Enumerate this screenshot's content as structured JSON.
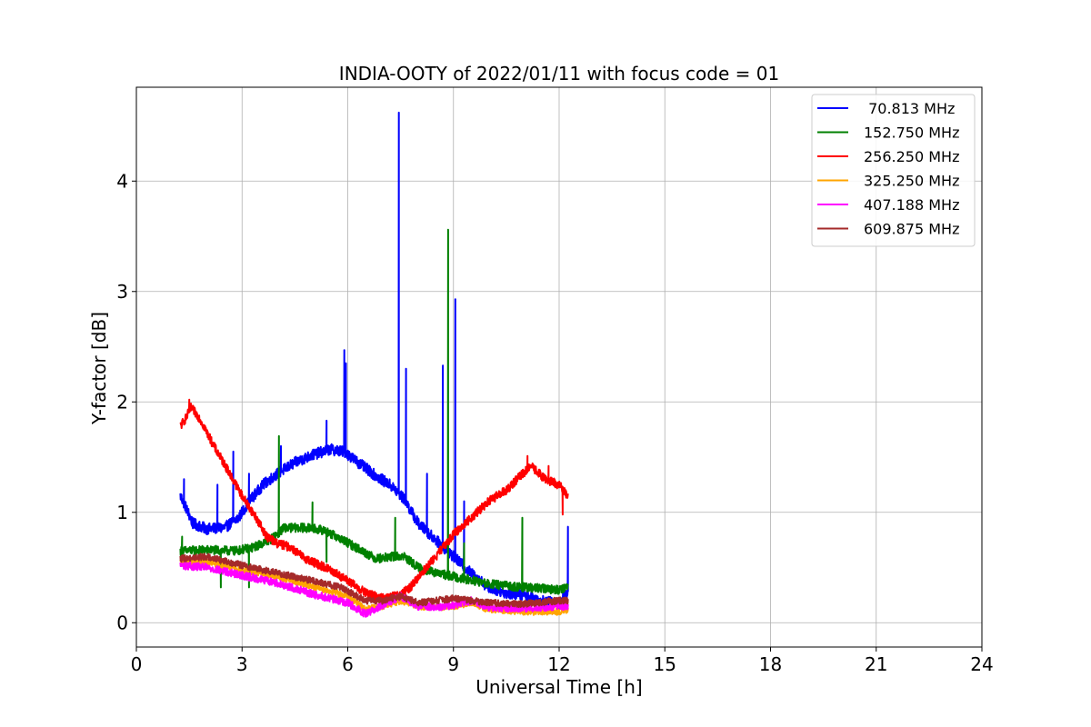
{
  "chart_data": {
    "type": "line",
    "title": "INDIA-OOTY of 2022/01/11 with focus code = 01",
    "xlabel": "Universal Time [h]",
    "ylabel": "Y-factor [dB]",
    "xlim": [
      0,
      24
    ],
    "ylim": [
      -0.22,
      4.85
    ],
    "xticks": [
      0,
      3,
      6,
      9,
      12,
      15,
      18,
      21,
      24
    ],
    "yticks": [
      0,
      1,
      2,
      3,
      4
    ],
    "grid": true,
    "legend_position": "top-right",
    "series": [
      {
        "name": " 70.813 MHz",
        "color": "#0000ff",
        "noise": 0.05,
        "points": [
          [
            1.25,
            1.15
          ],
          [
            1.4,
            1.05
          ],
          [
            1.6,
            0.9
          ],
          [
            2.0,
            0.85
          ],
          [
            2.5,
            0.86
          ],
          [
            2.9,
            0.95
          ],
          [
            3.2,
            1.1
          ],
          [
            3.6,
            1.25
          ],
          [
            4.0,
            1.35
          ],
          [
            4.5,
            1.45
          ],
          [
            5.0,
            1.52
          ],
          [
            5.5,
            1.57
          ],
          [
            5.9,
            1.55
          ],
          [
            6.3,
            1.45
          ],
          [
            6.8,
            1.33
          ],
          [
            7.2,
            1.25
          ],
          [
            7.6,
            1.12
          ],
          [
            8.0,
            0.9
          ],
          [
            8.5,
            0.75
          ],
          [
            9.0,
            0.6
          ],
          [
            9.5,
            0.45
          ],
          [
            10.0,
            0.32
          ],
          [
            10.5,
            0.27
          ],
          [
            11.0,
            0.25
          ],
          [
            11.5,
            0.2
          ],
          [
            12.0,
            0.17
          ],
          [
            12.25,
            0.28
          ]
        ],
        "spikes": [
          [
            1.35,
            1.3
          ],
          [
            2.3,
            1.25
          ],
          [
            2.75,
            1.55
          ],
          [
            3.2,
            1.35
          ],
          [
            4.1,
            1.6
          ],
          [
            5.4,
            1.83
          ],
          [
            5.9,
            2.47
          ],
          [
            5.95,
            2.35
          ],
          [
            7.45,
            4.62
          ],
          [
            7.65,
            2.3
          ],
          [
            8.25,
            1.35
          ],
          [
            8.7,
            2.33
          ],
          [
            9.05,
            2.93
          ],
          [
            9.3,
            1.1
          ],
          [
            12.25,
            0.87
          ]
        ]
      },
      {
        "name": "152.750 MHz",
        "color": "#008000",
        "noise": 0.04,
        "points": [
          [
            1.25,
            0.65
          ],
          [
            2.0,
            0.66
          ],
          [
            2.8,
            0.65
          ],
          [
            3.3,
            0.68
          ],
          [
            3.8,
            0.75
          ],
          [
            4.2,
            0.86
          ],
          [
            4.8,
            0.86
          ],
          [
            5.3,
            0.84
          ],
          [
            5.8,
            0.76
          ],
          [
            6.3,
            0.67
          ],
          [
            6.8,
            0.58
          ],
          [
            7.3,
            0.6
          ],
          [
            7.6,
            0.6
          ],
          [
            8.0,
            0.5
          ],
          [
            8.5,
            0.45
          ],
          [
            9.0,
            0.42
          ],
          [
            10.0,
            0.35
          ],
          [
            11.0,
            0.32
          ],
          [
            12.0,
            0.3
          ],
          [
            12.25,
            0.33
          ]
        ],
        "spikes": [
          [
            1.3,
            0.78
          ],
          [
            2.4,
            0.32
          ],
          [
            3.2,
            0.32
          ],
          [
            4.05,
            1.69
          ],
          [
            5.0,
            1.09
          ],
          [
            5.4,
            0.55
          ],
          [
            7.35,
            0.95
          ],
          [
            8.85,
            3.56
          ],
          [
            9.3,
            0.72
          ],
          [
            10.95,
            0.95
          ]
        ]
      },
      {
        "name": "256.250 MHz",
        "color": "#ff0000",
        "noise": 0.04,
        "points": [
          [
            1.25,
            1.78
          ],
          [
            1.4,
            1.85
          ],
          [
            1.55,
            1.95
          ],
          [
            1.8,
            1.85
          ],
          [
            2.2,
            1.6
          ],
          [
            2.6,
            1.38
          ],
          [
            3.0,
            1.15
          ],
          [
            3.4,
            0.95
          ],
          [
            3.7,
            0.78
          ],
          [
            4.0,
            0.72
          ],
          [
            4.4,
            0.68
          ],
          [
            4.7,
            0.6
          ],
          [
            5.0,
            0.55
          ],
          [
            5.5,
            0.48
          ],
          [
            6.0,
            0.38
          ],
          [
            6.5,
            0.27
          ],
          [
            7.0,
            0.22
          ],
          [
            7.5,
            0.25
          ],
          [
            7.8,
            0.33
          ],
          [
            8.1,
            0.45
          ],
          [
            8.5,
            0.6
          ],
          [
            9.0,
            0.8
          ],
          [
            9.5,
            0.95
          ],
          [
            10.0,
            1.1
          ],
          [
            10.5,
            1.2
          ],
          [
            10.9,
            1.33
          ],
          [
            11.2,
            1.42
          ],
          [
            11.6,
            1.3
          ],
          [
            12.0,
            1.25
          ],
          [
            12.25,
            1.15
          ]
        ],
        "spikes": [
          [
            1.5,
            2.02
          ],
          [
            11.1,
            1.51
          ],
          [
            11.7,
            1.42
          ],
          [
            12.1,
            0.98
          ]
        ]
      },
      {
        "name": "325.250 MHz",
        "color": "#ffa500",
        "noise": 0.03,
        "points": [
          [
            1.25,
            0.55
          ],
          [
            2.0,
            0.55
          ],
          [
            3.0,
            0.48
          ],
          [
            4.0,
            0.42
          ],
          [
            5.0,
            0.33
          ],
          [
            6.0,
            0.24
          ],
          [
            6.5,
            0.12
          ],
          [
            7.0,
            0.15
          ],
          [
            7.5,
            0.2
          ],
          [
            8.0,
            0.15
          ],
          [
            8.5,
            0.14
          ],
          [
            9.0,
            0.15
          ],
          [
            9.5,
            0.18
          ],
          [
            10.0,
            0.12
          ],
          [
            11.0,
            0.1
          ],
          [
            12.0,
            0.1
          ],
          [
            12.25,
            0.12
          ]
        ],
        "spikes": []
      },
      {
        "name": "407.188 MHz",
        "color": "#ff00ff",
        "noise": 0.035,
        "points": [
          [
            1.25,
            0.52
          ],
          [
            2.0,
            0.5
          ],
          [
            3.0,
            0.43
          ],
          [
            4.0,
            0.36
          ],
          [
            5.0,
            0.26
          ],
          [
            6.0,
            0.18
          ],
          [
            6.5,
            0.08
          ],
          [
            7.0,
            0.16
          ],
          [
            7.5,
            0.24
          ],
          [
            8.0,
            0.15
          ],
          [
            8.5,
            0.14
          ],
          [
            9.0,
            0.16
          ],
          [
            9.5,
            0.2
          ],
          [
            10.0,
            0.14
          ],
          [
            11.0,
            0.13
          ],
          [
            12.0,
            0.15
          ],
          [
            12.25,
            0.15
          ]
        ],
        "spikes": []
      },
      {
        "name": "609.875 MHz",
        "color": "#a52a2a",
        "noise": 0.03,
        "points": [
          [
            1.25,
            0.58
          ],
          [
            2.0,
            0.6
          ],
          [
            3.0,
            0.52
          ],
          [
            4.0,
            0.45
          ],
          [
            5.0,
            0.38
          ],
          [
            5.8,
            0.32
          ],
          [
            6.5,
            0.2
          ],
          [
            7.0,
            0.2
          ],
          [
            7.5,
            0.24
          ],
          [
            8.0,
            0.18
          ],
          [
            8.5,
            0.2
          ],
          [
            9.0,
            0.22
          ],
          [
            9.5,
            0.2
          ],
          [
            10.0,
            0.18
          ],
          [
            11.0,
            0.17
          ],
          [
            12.0,
            0.2
          ],
          [
            12.25,
            0.2
          ]
        ],
        "spikes": []
      }
    ]
  }
}
